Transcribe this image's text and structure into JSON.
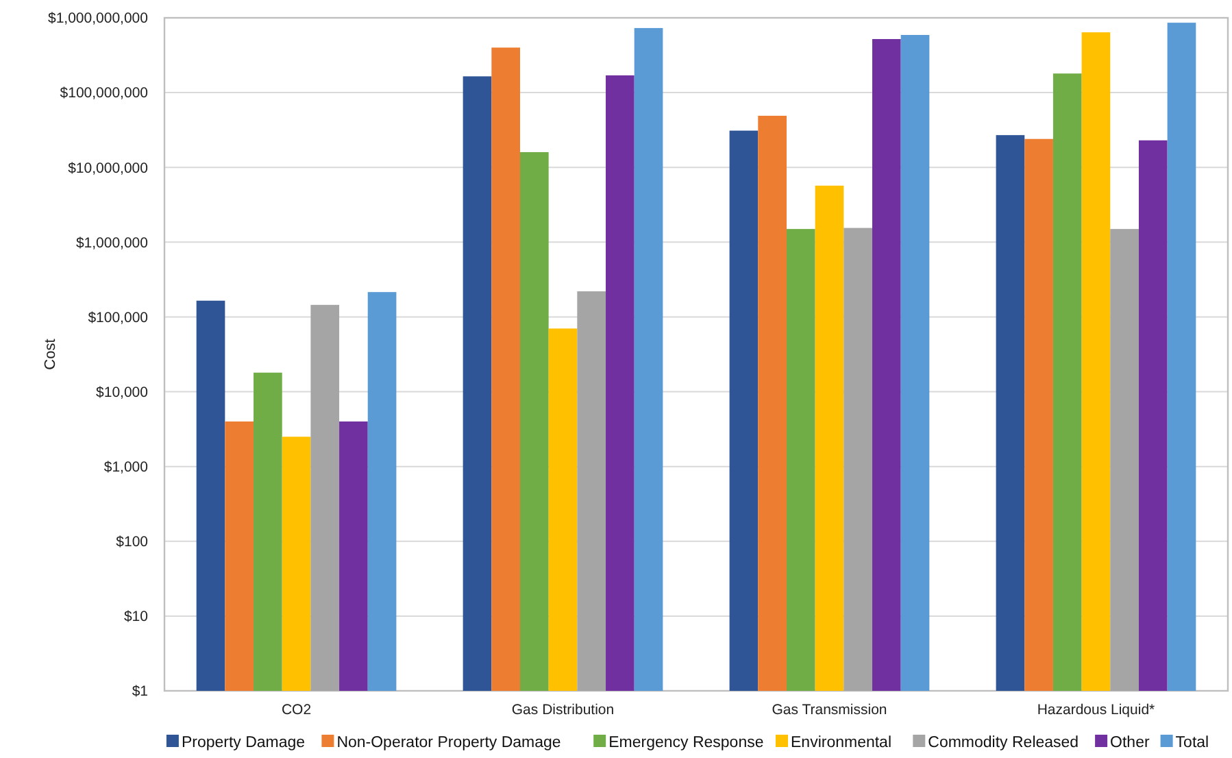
{
  "chart_data": {
    "type": "bar",
    "ylabel": "Cost",
    "categories": [
      "CO2",
      "Gas Distribution",
      "Gas Transmission",
      "Hazardous Liquid*"
    ],
    "series": [
      {
        "name": "Property Damage",
        "color": "#2f5597",
        "values": [
          165000,
          165000000,
          31000000,
          27000000
        ]
      },
      {
        "name": "Non-Operator Property Damage",
        "color": "#ed7d31",
        "values": [
          4000,
          400000000,
          49000000,
          24000000
        ]
      },
      {
        "name": "Emergency Response",
        "color": "#70ad47",
        "values": [
          18000,
          16000000,
          1500000,
          180000000
        ]
      },
      {
        "name": "Environmental",
        "color": "#ffc000",
        "values": [
          2500,
          70000,
          5700000,
          640000000
        ]
      },
      {
        "name": "Commodity Released",
        "color": "#a5a5a5",
        "values": [
          145000,
          220000,
          1550000,
          1500000
        ]
      },
      {
        "name": "Other",
        "color": "#7030a0",
        "values": [
          4000,
          170000000,
          520000000,
          23000000
        ]
      },
      {
        "name": "Total",
        "color": "#5b9bd5",
        "values": [
          215000,
          730000000,
          590000000,
          860000000
        ]
      }
    ],
    "log": true,
    "ylim": [
      1,
      1000000000
    ],
    "yticks": [
      {
        "value": 1,
        "label": "$1"
      },
      {
        "value": 10,
        "label": "$10"
      },
      {
        "value": 100,
        "label": "$100"
      },
      {
        "value": 1000,
        "label": "$1,000"
      },
      {
        "value": 10000,
        "label": "$10,000"
      },
      {
        "value": 100000,
        "label": "$100,000"
      },
      {
        "value": 1000000,
        "label": "$1,000,000"
      },
      {
        "value": 10000000,
        "label": "$10,000,000"
      },
      {
        "value": 100000000,
        "label": "$100,000,000"
      },
      {
        "value": 1000000000,
        "label": "$1,000,000,000"
      }
    ],
    "grid": "y",
    "legend": "bottom"
  }
}
